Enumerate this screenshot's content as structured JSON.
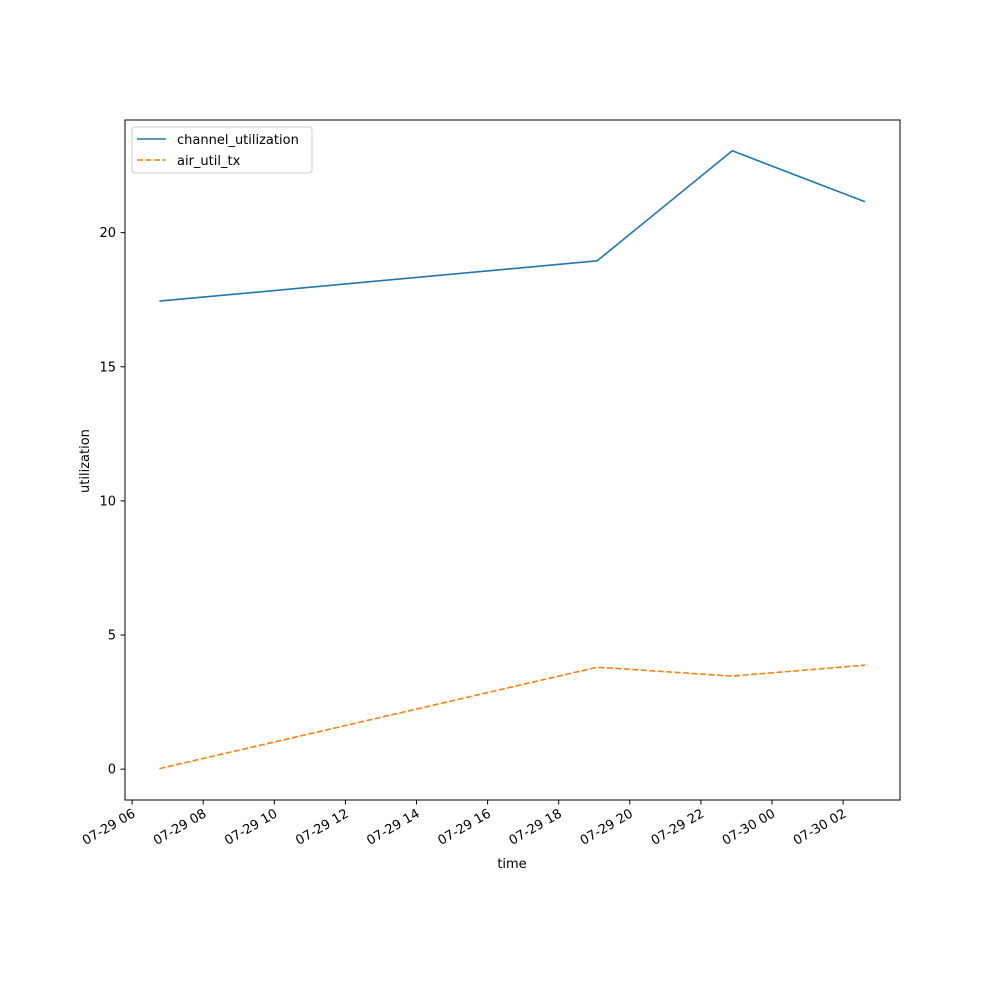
{
  "chart_data": {
    "type": "line",
    "xlabel": "time",
    "ylabel": "utilization",
    "xlim": [
      "2025-07-29T05:48",
      "2025-07-30T03:36"
    ],
    "ylim": [
      -1.15,
      24.2
    ],
    "x_ticks": [
      {
        "t": "2025-07-29T06:00",
        "label": "07-29 06"
      },
      {
        "t": "2025-07-29T08:00",
        "label": "07-29 08"
      },
      {
        "t": "2025-07-29T10:00",
        "label": "07-29 10"
      },
      {
        "t": "2025-07-29T12:00",
        "label": "07-29 12"
      },
      {
        "t": "2025-07-29T14:00",
        "label": "07-29 14"
      },
      {
        "t": "2025-07-29T16:00",
        "label": "07-29 16"
      },
      {
        "t": "2025-07-29T18:00",
        "label": "07-29 18"
      },
      {
        "t": "2025-07-29T20:00",
        "label": "07-29 20"
      },
      {
        "t": "2025-07-29T22:00",
        "label": "07-29 22"
      },
      {
        "t": "2025-07-30T00:00",
        "label": "07-30 00"
      },
      {
        "t": "2025-07-30T02:00",
        "label": "07-30 02"
      }
    ],
    "y_ticks": [
      0,
      5,
      10,
      15,
      20
    ],
    "legend_position": "top-left",
    "series": [
      {
        "name": "channel_utilization",
        "color": "#1f77b4",
        "style": "solid",
        "points": [
          {
            "x": "2025-07-29T06:46",
            "y": 17.45
          },
          {
            "x": "2025-07-29T19:05",
            "y": 18.95
          },
          {
            "x": "2025-07-29T22:53",
            "y": 23.05
          },
          {
            "x": "2025-07-30T02:37",
            "y": 21.15
          }
        ]
      },
      {
        "name": "air_util_tx",
        "color": "#ff7f0e",
        "style": "dashed",
        "points": [
          {
            "x": "2025-07-29T06:46",
            "y": 0.02
          },
          {
            "x": "2025-07-29T19:05",
            "y": 3.8
          },
          {
            "x": "2025-07-29T22:53",
            "y": 3.47
          },
          {
            "x": "2025-07-30T02:37",
            "y": 3.88
          }
        ]
      }
    ]
  }
}
